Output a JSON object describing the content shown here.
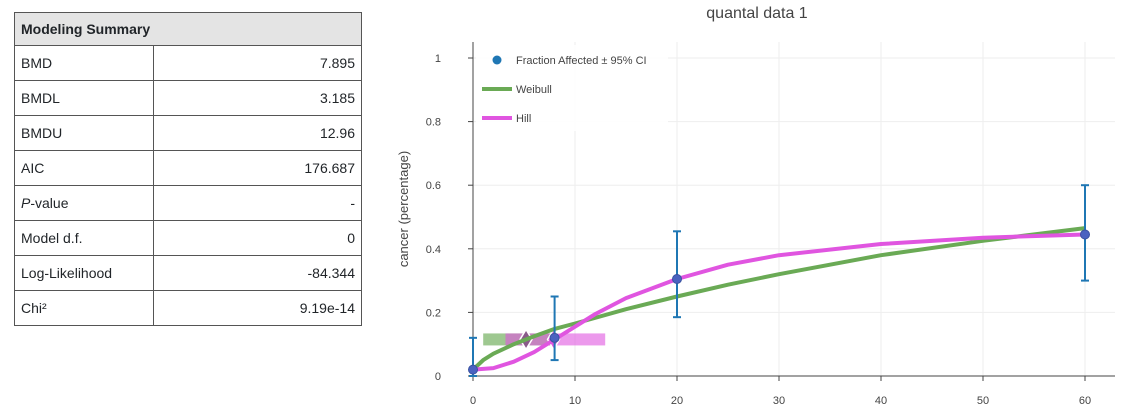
{
  "summary": {
    "title": "Modeling Summary",
    "rows": [
      {
        "label": "BMD",
        "value": "7.895"
      },
      {
        "label": "BMDL",
        "value": "3.185"
      },
      {
        "label": "BMDU",
        "value": "12.96"
      },
      {
        "label": "AIC",
        "value": "176.687"
      },
      {
        "label_italic": "P",
        "label_rest": "-value",
        "value": "-"
      },
      {
        "label": "Model d.f.",
        "value": "0"
      },
      {
        "label": "Log-Likelihood",
        "value": "-84.344"
      },
      {
        "label": "Chi²",
        "value": "9.19e-14"
      }
    ]
  },
  "chart_data": {
    "type": "scatter",
    "title": "quantal data 1",
    "xlabel": "",
    "ylabel": "cancer (percentage)",
    "xlim": [
      0,
      62
    ],
    "ylim": [
      0,
      1
    ],
    "x_ticks": [
      0,
      10,
      20,
      30,
      40,
      50,
      60
    ],
    "y_ticks": [
      0,
      0.2,
      0.4,
      0.6,
      0.8,
      1
    ],
    "y_tick_labels": [
      "0",
      "0.2",
      "0.4",
      "0.6",
      "0.8",
      "1"
    ],
    "grid": true,
    "legend_position": "top-left",
    "legend": [
      "Fraction Affected ± 95% CI",
      "Weibull",
      "Hill"
    ],
    "points": {
      "name": "Fraction Affected ± 95% CI",
      "color": "#1f77b4",
      "x": [
        0,
        8,
        20,
        60
      ],
      "y": [
        0.02,
        0.12,
        0.305,
        0.445
      ],
      "ci_lower": [
        0.0,
        0.05,
        0.185,
        0.3
      ],
      "ci_upper": [
        0.12,
        0.25,
        0.455,
        0.6
      ]
    },
    "series": [
      {
        "name": "Weibull",
        "color": "#6aaa55",
        "x": [
          0,
          1,
          2,
          4,
          6,
          8,
          10,
          15,
          20,
          25,
          30,
          40,
          50,
          60
        ],
        "y": [
          0.02,
          0.05,
          0.07,
          0.1,
          0.125,
          0.148,
          0.165,
          0.21,
          0.25,
          0.287,
          0.32,
          0.38,
          0.425,
          0.465
        ],
        "bmd": 5.2,
        "bmdl": 1.0,
        "bmdu": 8.0,
        "bmd_response": 0.115
      },
      {
        "name": "Hill",
        "color": "#e055e0",
        "x": [
          0,
          2,
          4,
          6,
          8,
          10,
          12,
          15,
          20,
          25,
          30,
          40,
          50,
          60
        ],
        "y": [
          0.02,
          0.025,
          0.045,
          0.075,
          0.115,
          0.155,
          0.195,
          0.245,
          0.305,
          0.35,
          0.38,
          0.415,
          0.435,
          0.445
        ],
        "bmd": 7.895,
        "bmdl": 3.185,
        "bmdu": 12.96,
        "bmd_response": 0.115
      }
    ]
  }
}
